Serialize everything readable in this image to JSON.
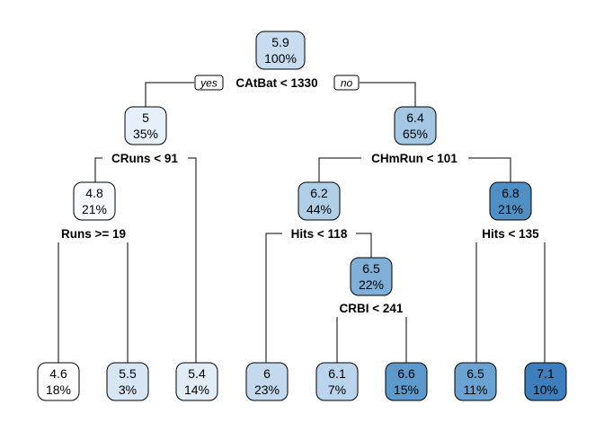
{
  "tree": {
    "nodes": [
      {
        "id": "n1",
        "value": "5.9",
        "percent": "100%",
        "color": "#c7dcef"
      },
      {
        "id": "n2",
        "value": "5",
        "percent": "35%",
        "color": "#e6f0fa"
      },
      {
        "id": "n3",
        "value": "6.4",
        "percent": "65%",
        "color": "#a4c7e3"
      },
      {
        "id": "n4",
        "value": "4.8",
        "percent": "21%",
        "color": "#f7fbff"
      },
      {
        "id": "n5",
        "value": "6.2",
        "percent": "44%",
        "color": "#b0cfe7"
      },
      {
        "id": "n6",
        "value": "6.8",
        "percent": "21%",
        "color": "#4f8fc4"
      },
      {
        "id": "n7",
        "value": "6.5",
        "percent": "22%",
        "color": "#80b0d8"
      },
      {
        "id": "l1",
        "value": "4.6",
        "percent": "18%",
        "color": "#ffffff"
      },
      {
        "id": "l2",
        "value": "5.5",
        "percent": "3%",
        "color": "#d8e6f4"
      },
      {
        "id": "l3",
        "value": "5.4",
        "percent": "14%",
        "color": "#e1ecf7"
      },
      {
        "id": "l4",
        "value": "6",
        "percent": "23%",
        "color": "#c2d9ee"
      },
      {
        "id": "l5",
        "value": "6.1",
        "percent": "7%",
        "color": "#b9d4ec"
      },
      {
        "id": "l6",
        "value": "6.6",
        "percent": "15%",
        "color": "#5c99cc"
      },
      {
        "id": "l7",
        "value": "6.5",
        "percent": "11%",
        "color": "#6aa3d2"
      },
      {
        "id": "l8",
        "value": "7.1",
        "percent": "10%",
        "color": "#3d7fbd"
      }
    ],
    "splits": [
      {
        "id": "s1",
        "label": "CAtBat < 1330"
      },
      {
        "id": "s2",
        "label": "CRuns < 91"
      },
      {
        "id": "s3",
        "label": "CHmRun < 101"
      },
      {
        "id": "s4",
        "label": "Runs >= 19"
      },
      {
        "id": "s5",
        "label": "Hits < 118"
      },
      {
        "id": "s6",
        "label": "Hits < 135"
      },
      {
        "id": "s7",
        "label": "CRBI < 241"
      }
    ],
    "yes_label": "yes",
    "no_label": "no"
  }
}
